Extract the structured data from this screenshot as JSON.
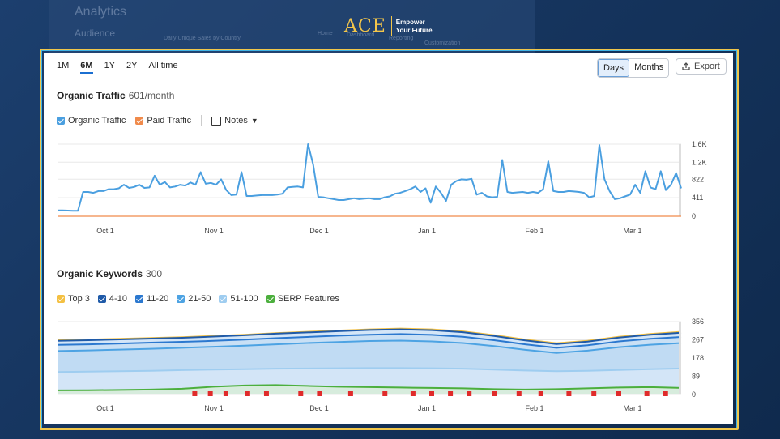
{
  "background": {
    "title_text": "Analytics",
    "audience_text": "Audience",
    "nav_home": "Home",
    "nav_dashboard": "Dashboard",
    "nav_reporting": "Reporting",
    "nav_customization": "Customization",
    "sub_text": "Daily Unique Sales by Country"
  },
  "logo": {
    "brand": "ACE",
    "tagline_1": "Empower",
    "tagline_2": "Your Future"
  },
  "range_tabs": [
    {
      "label": "1M",
      "active": false
    },
    {
      "label": "6M",
      "active": true
    },
    {
      "label": "1Y",
      "active": false
    },
    {
      "label": "2Y",
      "active": false
    },
    {
      "label": "All time",
      "active": false
    }
  ],
  "granularity": {
    "days_label": "Days",
    "months_label": "Months",
    "selected": "Days"
  },
  "export_label": "Export",
  "traffic": {
    "title": "Organic Traffic",
    "subtitle": "601/month",
    "legend": [
      {
        "label": "Organic Traffic",
        "color": "#4a9fe0",
        "checked": true
      },
      {
        "label": "Paid Traffic",
        "color": "#f08a4b",
        "checked": true
      }
    ],
    "notes_label": "Notes"
  },
  "keywords": {
    "title": "Organic Keywords",
    "subtitle": "300",
    "legend": [
      {
        "label": "Top 3",
        "color": "#f4c042",
        "checked": true
      },
      {
        "label": "4-10",
        "color": "#1f5aa8",
        "checked": true
      },
      {
        "label": "11-20",
        "color": "#2b78cf",
        "checked": true
      },
      {
        "label": "21-50",
        "color": "#4da3e3",
        "checked": true
      },
      {
        "label": "51-100",
        "color": "#9fcdf0",
        "checked": true
      },
      {
        "label": "SERP Features",
        "color": "#4caf3d",
        "checked": true
      }
    ]
  },
  "chart_data": [
    {
      "type": "line",
      "title": "Organic Traffic",
      "x_ticks": [
        "Oct 1",
        "Nov 1",
        "Dec 1",
        "Jan 1",
        "Feb 1",
        "Mar 1"
      ],
      "y_ticks": [
        "1.6K",
        "1.2K",
        "822",
        "411",
        "0"
      ],
      "ylim": [
        0,
        1600
      ],
      "series": [
        {
          "name": "Organic Traffic",
          "color": "#4a9fe0",
          "values": [
            130,
            130,
            125,
            120,
            120,
            540,
            540,
            520,
            560,
            560,
            600,
            600,
            620,
            700,
            630,
            650,
            700,
            630,
            640,
            900,
            700,
            760,
            640,
            660,
            700,
            680,
            750,
            700,
            980,
            720,
            740,
            700,
            820,
            580,
            470,
            480,
            980,
            450,
            450,
            460,
            470,
            470,
            470,
            480,
            500,
            640,
            650,
            660,
            640,
            1600,
            1150,
            430,
            420,
            400,
            380,
            360,
            360,
            380,
            400,
            380,
            390,
            400,
            380,
            380,
            420,
            440,
            500,
            520,
            560,
            600,
            660,
            540,
            620,
            300,
            660,
            520,
            340,
            700,
            780,
            820,
            810,
            830,
            480,
            520,
            440,
            420,
            430,
            1250,
            540,
            520,
            530,
            540,
            520,
            540,
            520,
            600,
            1220,
            560,
            540,
            540,
            560,
            550,
            540,
            520,
            420,
            450,
            1580,
            820,
            560,
            380,
            400,
            440,
            480,
            700,
            520,
            1000,
            640,
            600,
            1000,
            580,
            700,
            960,
            620
          ]
        },
        {
          "name": "Paid Traffic",
          "color": "#f08a4b",
          "values": [
            0,
            0,
            0,
            0,
            0,
            0,
            0,
            0,
            0,
            0,
            0,
            0,
            0,
            0,
            0,
            0,
            0,
            0,
            0,
            0,
            0,
            0,
            0,
            0,
            0,
            0,
            0,
            0,
            0,
            0,
            0,
            0,
            0,
            0,
            0,
            0,
            0,
            0,
            0,
            0,
            0,
            0,
            0,
            0,
            0,
            0,
            0,
            0,
            0,
            0,
            0,
            0,
            0,
            0,
            0,
            0,
            0,
            0,
            0,
            0,
            0,
            0,
            0,
            0,
            0,
            0,
            0,
            0,
            0,
            0,
            0,
            0,
            0,
            0,
            0,
            0,
            0,
            0,
            0,
            0,
            0,
            0,
            0,
            0,
            0,
            0,
            0,
            0,
            0,
            0,
            0,
            0,
            0,
            0,
            0,
            0,
            0,
            0,
            0,
            0,
            0,
            0,
            0,
            0,
            0,
            0,
            0,
            0,
            0,
            0,
            0,
            0,
            0,
            0,
            0,
            0,
            0,
            0,
            0,
            0,
            0,
            0,
            0
          ]
        }
      ]
    },
    {
      "type": "area",
      "title": "Organic Keywords",
      "x_ticks": [
        "Oct 1",
        "Nov 1",
        "Dec 1",
        "Jan 1",
        "Feb 1",
        "Mar 1"
      ],
      "y_ticks": [
        "356",
        "267",
        "178",
        "89",
        "0"
      ],
      "ylim": [
        0,
        356
      ],
      "series": [
        {
          "name": "Top 3",
          "color": "#f4c042",
          "values": [
            265,
            268,
            272,
            276,
            280,
            286,
            292,
            300,
            306,
            312,
            318,
            322,
            318,
            308,
            290,
            268,
            250,
            262,
            282,
            296,
            306
          ]
        },
        {
          "name": "4-10",
          "color": "#1f5aa8",
          "values": [
            262,
            265,
            269,
            273,
            277,
            283,
            289,
            297,
            303,
            309,
            315,
            318,
            314,
            304,
            286,
            264,
            246,
            258,
            278,
            292,
            302
          ]
        },
        {
          "name": "11-20",
          "color": "#2b78cf",
          "values": [
            242,
            245,
            249,
            253,
            257,
            262,
            268,
            275,
            281,
            287,
            292,
            295,
            291,
            282,
            265,
            245,
            228,
            240,
            259,
            272,
            281
          ]
        },
        {
          "name": "21-50",
          "color": "#4da3e3",
          "values": [
            212,
            215,
            219,
            223,
            228,
            233,
            238,
            245,
            251,
            256,
            261,
            263,
            259,
            251,
            236,
            218,
            203,
            214,
            231,
            243,
            251
          ]
        },
        {
          "name": "51-100",
          "color": "#9fcdf0",
          "values": [
            110,
            112,
            114,
            116,
            119,
            122,
            124,
            126,
            127,
            128,
            129,
            129,
            128,
            126,
            122,
            117,
            114,
            116,
            120,
            124,
            127
          ]
        },
        {
          "name": "SERP Features",
          "color": "#4caf3d",
          "values": [
            20,
            21,
            22,
            24,
            28,
            38,
            44,
            46,
            42,
            38,
            36,
            34,
            32,
            30,
            26,
            24,
            26,
            30,
            34,
            36,
            32
          ]
        }
      ],
      "markers": [
        0.22,
        0.245,
        0.27,
        0.305,
        0.335,
        0.39,
        0.42,
        0.47,
        0.525,
        0.57,
        0.6,
        0.63,
        0.66,
        0.7,
        0.74,
        0.775,
        0.82,
        0.86,
        0.9,
        0.945,
        0.975
      ]
    }
  ]
}
